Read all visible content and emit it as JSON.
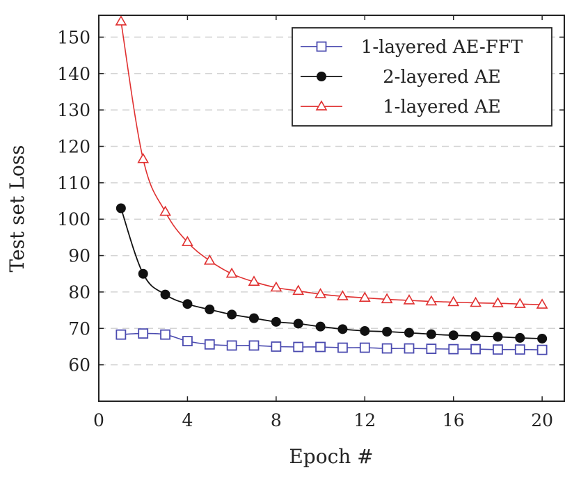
{
  "chart_data": {
    "type": "line",
    "xlabel": "Epoch #",
    "ylabel": "Test set Loss",
    "xlim": [
      0,
      21
    ],
    "ylim": [
      50,
      156
    ],
    "x_ticks": [
      0,
      4,
      8,
      12,
      16,
      20
    ],
    "y_ticks": [
      60,
      70,
      80,
      90,
      100,
      110,
      120,
      130,
      140,
      150
    ],
    "y_grid": true,
    "legend_position": "top-right",
    "x": [
      1,
      2,
      3,
      4,
      5,
      6,
      7,
      8,
      9,
      10,
      11,
      12,
      13,
      14,
      15,
      16,
      17,
      18,
      19,
      20
    ],
    "series": [
      {
        "name": "1-layered AE-FFT",
        "color": "#4b4bb0",
        "marker": "square-open",
        "values": [
          68.3,
          68.6,
          68.3,
          66.5,
          65.6,
          65.3,
          65.3,
          65.0,
          64.9,
          64.9,
          64.7,
          64.7,
          64.5,
          64.5,
          64.4,
          64.3,
          64.3,
          64.2,
          64.2,
          64.1
        ]
      },
      {
        "name": "2-layered AE",
        "color": "#111111",
        "marker": "circle-filled",
        "values": [
          103.0,
          85.0,
          79.3,
          76.7,
          75.2,
          73.8,
          72.8,
          71.8,
          71.3,
          70.5,
          69.8,
          69.3,
          69.1,
          68.8,
          68.4,
          68.1,
          67.9,
          67.7,
          67.4,
          67.2
        ]
      },
      {
        "name": "1-layered AE",
        "color": "#e03030",
        "marker": "triangle-open",
        "values": [
          154.3,
          116.5,
          102.0,
          93.7,
          88.6,
          85.0,
          82.8,
          81.2,
          80.3,
          79.4,
          78.8,
          78.4,
          78.0,
          77.7,
          77.4,
          77.2,
          77.0,
          76.9,
          76.7,
          76.5
        ]
      }
    ]
  }
}
